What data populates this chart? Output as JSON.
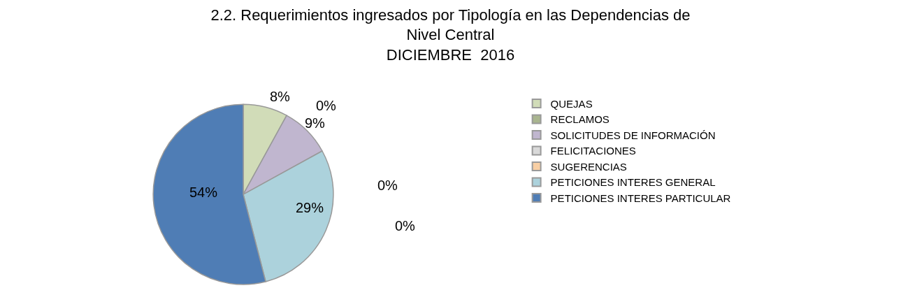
{
  "chart_data": {
    "type": "pie",
    "title": "2.2. Requerimientos ingresados por Tipología en las Dependencias de\nNivel Central\nDICIEMBRE  2016",
    "categories": [
      "QUEJAS",
      "RECLAMOS",
      "SOLICITUDES DE INFORMACIÓN",
      "FELICITACIONES",
      "SUGERENCIAS",
      "PETICIONES INTERES GENERAL",
      "PETICIONES INTERES PARTICULAR"
    ],
    "values": [
      8,
      0,
      9,
      0,
      0,
      29,
      54
    ],
    "value_labels": [
      "8%",
      "0%",
      "9%",
      "0%",
      "0%",
      "29%",
      "54%"
    ],
    "colors": [
      "#d1dcb8",
      "#a9b58f",
      "#c0b6cf",
      "#d9d9d9",
      "#f8cfa4",
      "#acd2dc",
      "#4f7db5"
    ],
    "legend": "right"
  }
}
